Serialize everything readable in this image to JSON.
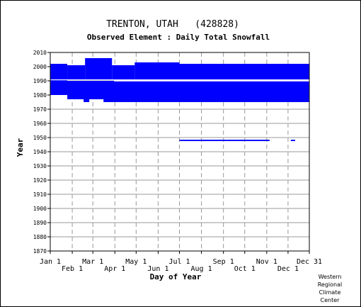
{
  "chart_data": {
    "type": "scatter",
    "title": "TRENTON, UTAH   (428828)",
    "subtitle": "Observed Element : Daily Total Snowfall",
    "xlabel": "Day of Year",
    "ylabel": "Year",
    "xlim": [
      1,
      366
    ],
    "ylim": [
      1870,
      2010
    ],
    "x_ticks_upper": [
      {
        "label": "Jan 1",
        "day": 1
      },
      {
        "label": "Mar 1",
        "day": 61
      },
      {
        "label": "May 1",
        "day": 122
      },
      {
        "label": "Jul 1",
        "day": 183
      },
      {
        "label": "Sep 1",
        "day": 245
      },
      {
        "label": "Nov 1",
        "day": 306
      },
      {
        "label": "Dec 31",
        "day": 366
      }
    ],
    "x_ticks_lower": [
      {
        "label": "Feb 1",
        "day": 32
      },
      {
        "label": "Apr 1",
        "day": 92
      },
      {
        "label": "Jun 1",
        "day": 153
      },
      {
        "label": "Aug 1",
        "day": 214
      },
      {
        "label": "Oct 1",
        "day": 275
      },
      {
        "label": "Dec 1",
        "day": 336
      }
    ],
    "y_ticks": [
      1870,
      1880,
      1890,
      1900,
      1910,
      1920,
      1930,
      1940,
      1950,
      1960,
      1970,
      1980,
      1990,
      2000,
      2010
    ],
    "grid": true,
    "series_color": "#0000ff",
    "observed_periods": [
      {
        "day_start": 1,
        "day_end": 366,
        "year_start": 1975,
        "year_end": 1990
      },
      {
        "day_start": 1,
        "day_end": 25,
        "year_start": 1990,
        "year_end": 2002
      },
      {
        "day_start": 25,
        "day_end": 50,
        "year_start": 1991,
        "year_end": 2001
      },
      {
        "day_start": 50,
        "day_end": 88,
        "year_start": 1991,
        "year_end": 2006
      },
      {
        "day_start": 88,
        "day_end": 120,
        "year_start": 1991,
        "year_end": 2001
      },
      {
        "day_start": 120,
        "day_end": 183,
        "year_start": 1991,
        "year_end": 2003
      },
      {
        "day_start": 183,
        "day_end": 366,
        "year_start": 1991,
        "year_end": 2002
      },
      {
        "day_start": 183,
        "day_end": 250,
        "year_start": 1947.5,
        "year_end": 1948.5
      },
      {
        "day_start": 250,
        "day_end": 310,
        "year_start": 1947.5,
        "year_end": 1948.5
      },
      {
        "day_start": 340,
        "day_end": 346,
        "year_start": 1947.5,
        "year_end": 1948.5
      }
    ],
    "missing_periods": [
      {
        "day_start": 1,
        "day_end": 366,
        "year_start": 1990.4,
        "year_end": 1991
      },
      {
        "day_start": 91,
        "day_end": 366,
        "year_start": 1989.6,
        "year_end": 1990.4
      },
      {
        "day_start": 1,
        "day_end": 48,
        "year_start": 1975,
        "year_end": 1977
      },
      {
        "day_start": 56,
        "day_end": 76,
        "year_start": 1975,
        "year_end": 1977
      },
      {
        "day_start": 1,
        "day_end": 25,
        "year_start": 1977,
        "year_end": 1980
      }
    ]
  },
  "credit": {
    "line1": "Western",
    "line2": "Regional",
    "line3": "Climate",
    "line4": "Center"
  }
}
